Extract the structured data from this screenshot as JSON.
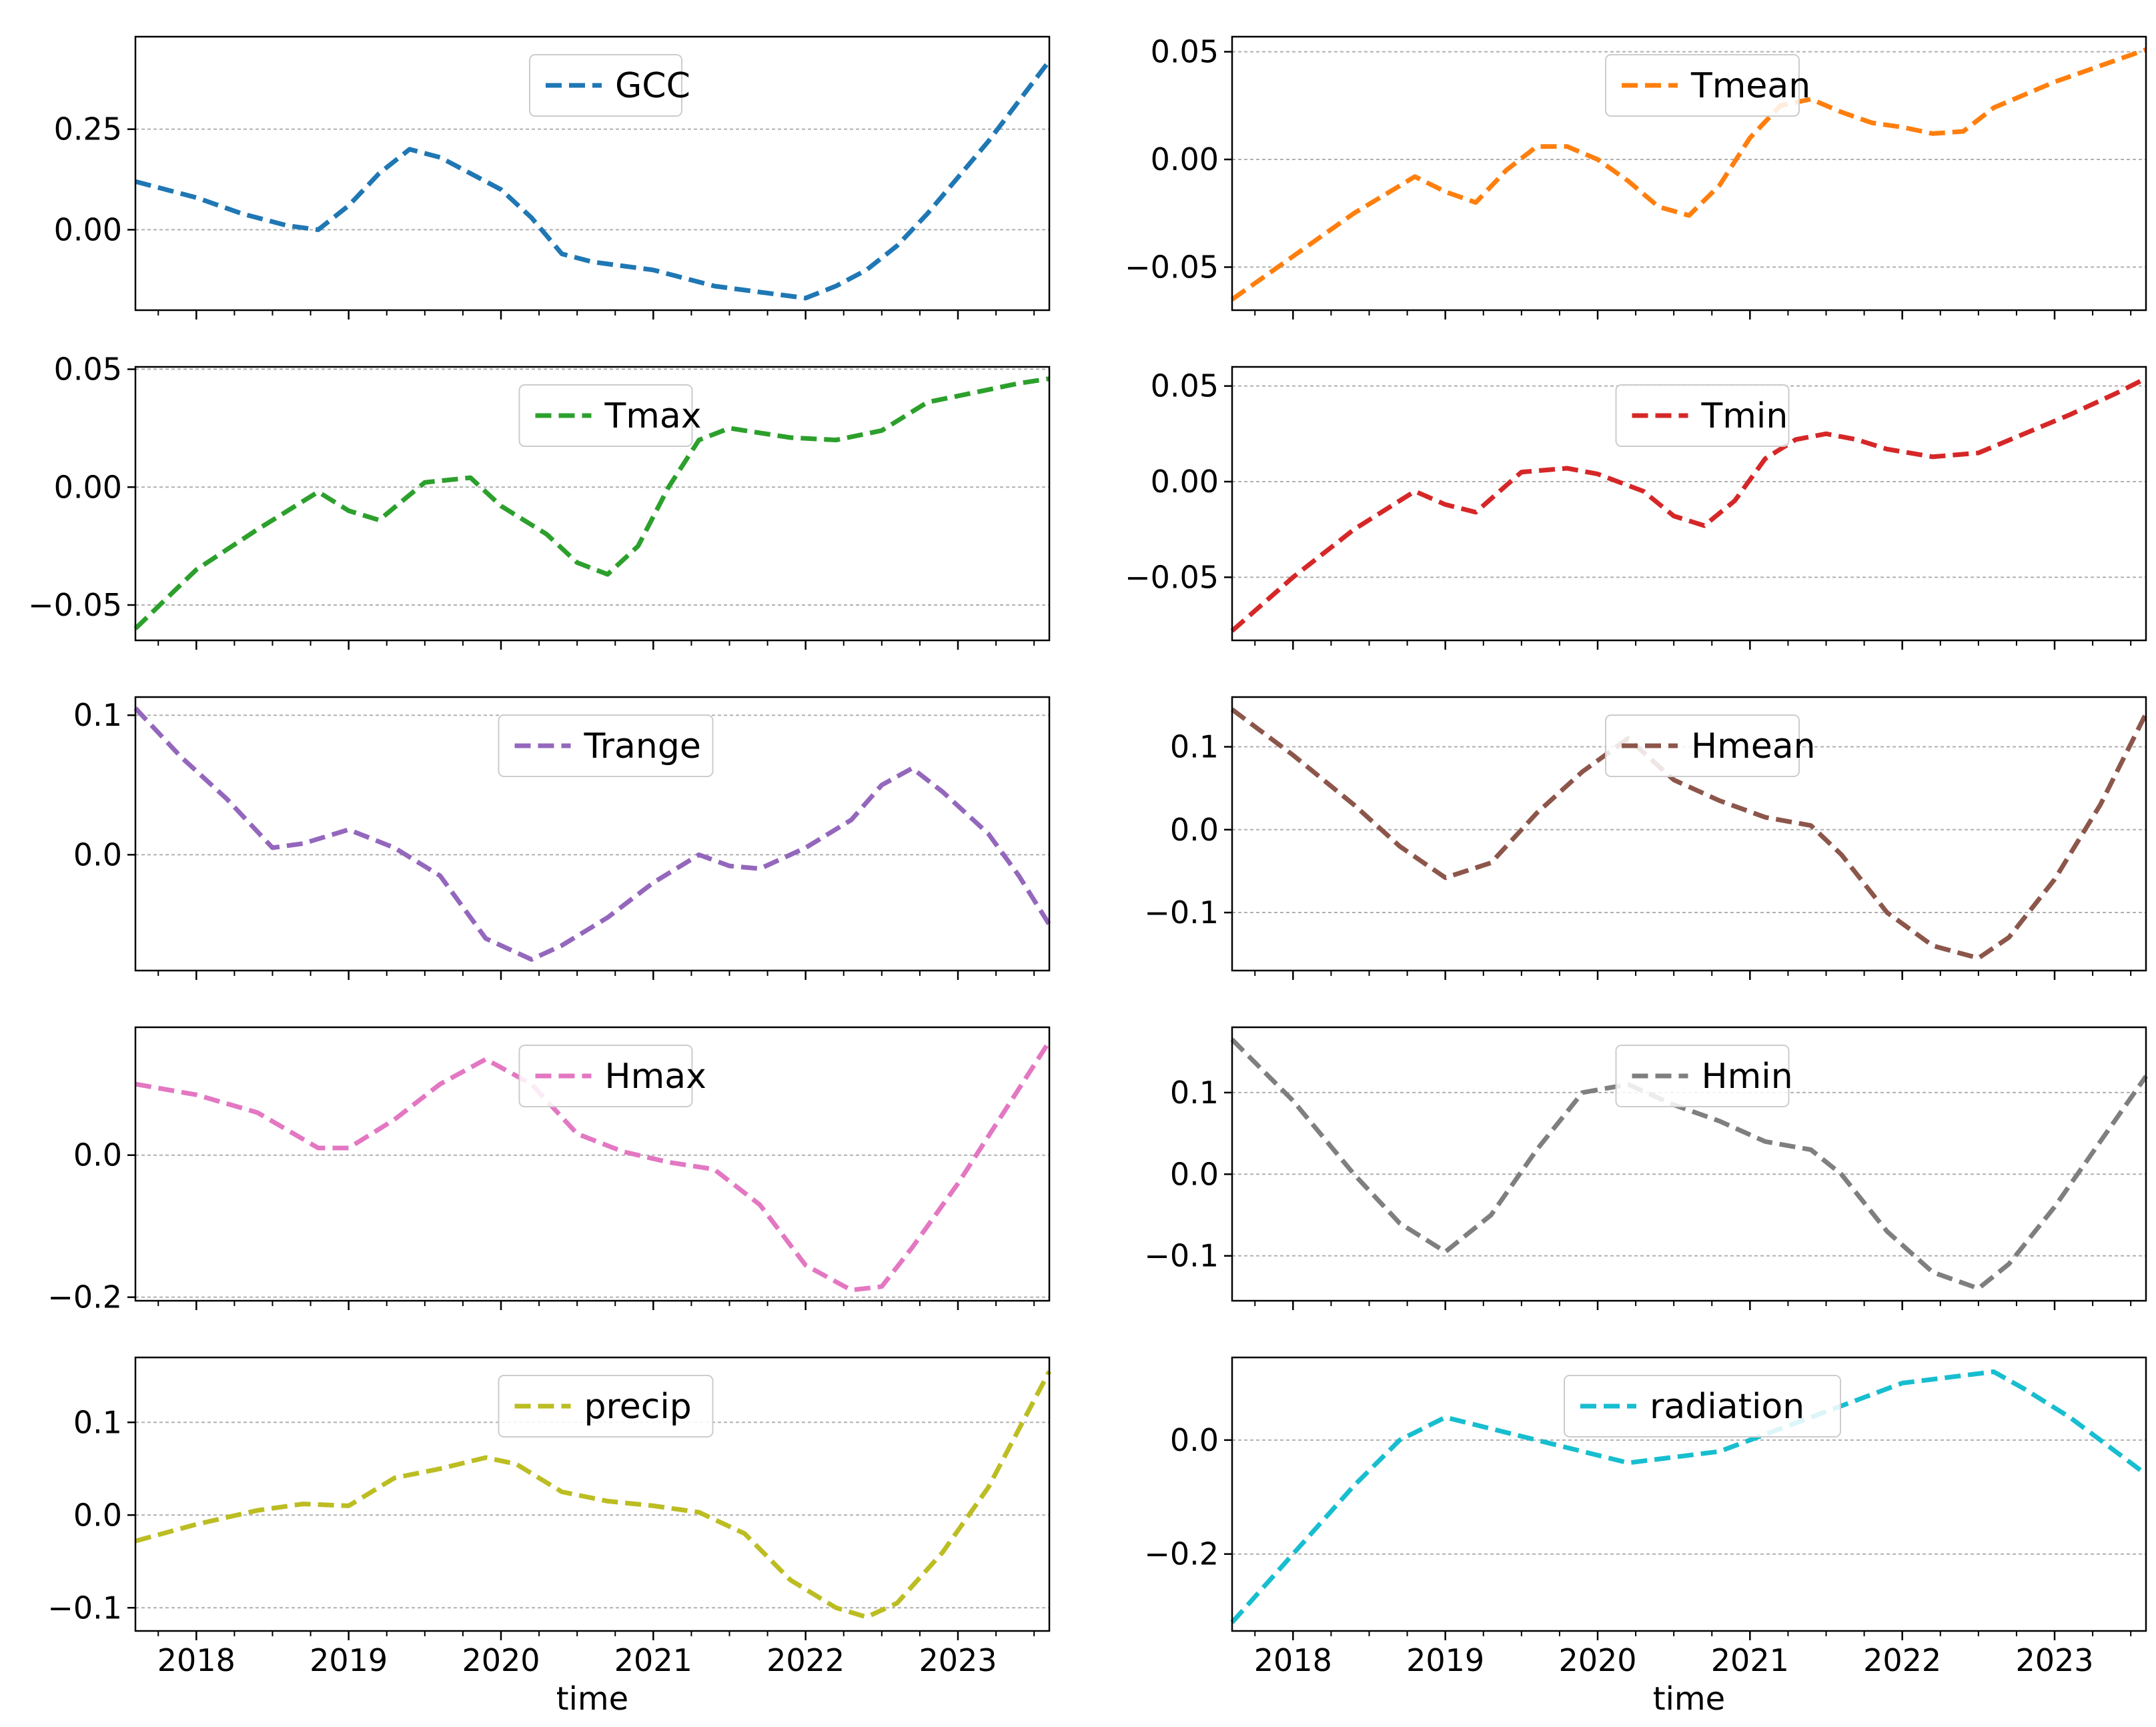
{
  "chart_data": [
    {
      "type": "line",
      "series": [
        {
          "name": "GCC",
          "color": "#1f77b4",
          "x": [
            2017.6,
            2018.0,
            2018.3,
            2018.6,
            2018.8,
            2019.0,
            2019.2,
            2019.4,
            2019.6,
            2019.8,
            2020.0,
            2020.2,
            2020.4,
            2020.6,
            2020.8,
            2021.0,
            2021.2,
            2021.4,
            2021.6,
            2021.8,
            2022.0,
            2022.2,
            2022.4,
            2022.6,
            2022.8,
            2023.0,
            2023.2,
            2023.4,
            2023.6
          ],
          "y": [
            0.12,
            0.08,
            0.04,
            0.01,
            0.0,
            0.06,
            0.14,
            0.2,
            0.18,
            0.14,
            0.1,
            0.03,
            -0.06,
            -0.08,
            -0.09,
            -0.1,
            -0.12,
            -0.14,
            -0.15,
            -0.16,
            -0.17,
            -0.14,
            -0.1,
            -0.04,
            0.04,
            0.13,
            0.22,
            0.32,
            0.42
          ]
        }
      ],
      "yticks": [
        0.0,
        0.25
      ],
      "ytick_labels": [
        "0.00",
        "0.25"
      ],
      "ylim": [
        -0.2,
        0.48
      ],
      "xlim": [
        2017.6,
        2023.6
      ],
      "xticks": [
        2018,
        2019,
        2020,
        2021,
        2022,
        2023
      ],
      "xtick_labels": [],
      "xlabel": "",
      "grid": true,
      "legend": "upper-center"
    },
    {
      "type": "line",
      "series": [
        {
          "name": "Tmean",
          "color": "#ff7f0e",
          "x": [
            2017.6,
            2018.0,
            2018.4,
            2018.8,
            2019.0,
            2019.2,
            2019.4,
            2019.6,
            2019.8,
            2020.0,
            2020.2,
            2020.4,
            2020.6,
            2020.8,
            2021.0,
            2021.2,
            2021.4,
            2021.6,
            2021.8,
            2022.0,
            2022.2,
            2022.4,
            2022.6,
            2022.8,
            2023.0,
            2023.2,
            2023.4,
            2023.6
          ],
          "y": [
            -0.065,
            -0.045,
            -0.025,
            -0.008,
            -0.015,
            -0.02,
            -0.005,
            0.006,
            0.006,
            0.0,
            -0.01,
            -0.022,
            -0.026,
            -0.012,
            0.01,
            0.025,
            0.028,
            0.022,
            0.017,
            0.015,
            0.012,
            0.013,
            0.024,
            0.03,
            0.036,
            0.041,
            0.046,
            0.051
          ]
        }
      ],
      "yticks": [
        -0.05,
        0.0,
        0.05
      ],
      "ytick_labels": [
        "−0.05",
        "0.00",
        "0.05"
      ],
      "ylim": [
        -0.07,
        0.057
      ],
      "xlim": [
        2017.6,
        2023.6
      ],
      "xticks": [
        2018,
        2019,
        2020,
        2021,
        2022,
        2023
      ],
      "xtick_labels": [],
      "xlabel": "",
      "grid": true,
      "legend": "upper-center"
    },
    {
      "type": "line",
      "series": [
        {
          "name": "Tmax",
          "color": "#2ca02c",
          "x": [
            2017.6,
            2018.0,
            2018.4,
            2018.8,
            2019.0,
            2019.2,
            2019.5,
            2019.8,
            2020.0,
            2020.3,
            2020.5,
            2020.7,
            2020.9,
            2021.1,
            2021.3,
            2021.5,
            2021.7,
            2021.9,
            2022.2,
            2022.5,
            2022.8,
            2023.1,
            2023.4,
            2023.6
          ],
          "y": [
            -0.06,
            -0.035,
            -0.018,
            -0.002,
            -0.01,
            -0.014,
            0.002,
            0.004,
            -0.008,
            -0.02,
            -0.032,
            -0.037,
            -0.025,
            0.0,
            0.02,
            0.025,
            0.023,
            0.021,
            0.02,
            0.024,
            0.036,
            0.04,
            0.044,
            0.046
          ]
        }
      ],
      "yticks": [
        -0.05,
        0.0,
        0.05
      ],
      "ytick_labels": [
        "−0.05",
        "0.00",
        "0.05"
      ],
      "ylim": [
        -0.065,
        0.051
      ],
      "xlim": [
        2017.6,
        2023.6
      ],
      "xticks": [
        2018,
        2019,
        2020,
        2021,
        2022,
        2023
      ],
      "xtick_labels": [],
      "xlabel": "",
      "grid": true,
      "legend": "upper-center"
    },
    {
      "type": "line",
      "series": [
        {
          "name": "Tmin",
          "color": "#d62728",
          "x": [
            2017.6,
            2018.0,
            2018.4,
            2018.8,
            2019.0,
            2019.2,
            2019.5,
            2019.8,
            2020.0,
            2020.3,
            2020.5,
            2020.7,
            2020.9,
            2021.1,
            2021.3,
            2021.5,
            2021.7,
            2021.9,
            2022.2,
            2022.5,
            2022.8,
            2023.1,
            2023.4,
            2023.6
          ],
          "y": [
            -0.078,
            -0.05,
            -0.025,
            -0.005,
            -0.012,
            -0.016,
            0.005,
            0.007,
            0.004,
            -0.005,
            -0.018,
            -0.023,
            -0.01,
            0.012,
            0.022,
            0.025,
            0.022,
            0.017,
            0.013,
            0.015,
            0.025,
            0.035,
            0.046,
            0.054
          ]
        }
      ],
      "yticks": [
        -0.05,
        0.0,
        0.05
      ],
      "ytick_labels": [
        "−0.05",
        "0.00",
        "0.05"
      ],
      "ylim": [
        -0.083,
        0.06
      ],
      "xlim": [
        2017.6,
        2023.6
      ],
      "xticks": [
        2018,
        2019,
        2020,
        2021,
        2022,
        2023
      ],
      "xtick_labels": [],
      "xlabel": "",
      "grid": true,
      "legend": "upper-center"
    },
    {
      "type": "line",
      "series": [
        {
          "name": "Trange",
          "color": "#9467bd",
          "x": [
            2017.6,
            2017.9,
            2018.2,
            2018.5,
            2018.7,
            2019.0,
            2019.3,
            2019.6,
            2019.9,
            2020.2,
            2020.4,
            2020.7,
            2021.0,
            2021.3,
            2021.5,
            2021.7,
            2022.0,
            2022.3,
            2022.5,
            2022.7,
            2022.9,
            2023.2,
            2023.4,
            2023.6
          ],
          "y": [
            0.105,
            0.07,
            0.04,
            0.005,
            0.008,
            0.018,
            0.005,
            -0.015,
            -0.06,
            -0.075,
            -0.065,
            -0.045,
            -0.02,
            0.0,
            -0.008,
            -0.01,
            0.005,
            0.025,
            0.05,
            0.062,
            0.045,
            0.015,
            -0.015,
            -0.05
          ]
        }
      ],
      "yticks": [
        0.0,
        0.1
      ],
      "ytick_labels": [
        "0.0",
        "0.1"
      ],
      "ylim": [
        -0.083,
        0.113
      ],
      "xlim": [
        2017.6,
        2023.6
      ],
      "xticks": [
        2018,
        2019,
        2020,
        2021,
        2022,
        2023
      ],
      "xtick_labels": [],
      "xlabel": "",
      "grid": true,
      "legend": "upper-center"
    },
    {
      "type": "line",
      "series": [
        {
          "name": "Hmean",
          "color": "#8c564b",
          "x": [
            2017.6,
            2018.0,
            2018.4,
            2018.7,
            2019.0,
            2019.3,
            2019.6,
            2019.9,
            2020.2,
            2020.5,
            2020.8,
            2021.1,
            2021.4,
            2021.6,
            2021.9,
            2022.2,
            2022.5,
            2022.7,
            2023.0,
            2023.3,
            2023.6
          ],
          "y": [
            0.145,
            0.09,
            0.03,
            -0.02,
            -0.058,
            -0.04,
            0.02,
            0.07,
            0.11,
            0.06,
            0.035,
            0.015,
            0.005,
            -0.03,
            -0.1,
            -0.14,
            -0.155,
            -0.13,
            -0.06,
            0.03,
            0.14
          ]
        }
      ],
      "yticks": [
        -0.1,
        0.0,
        0.1
      ],
      "ytick_labels": [
        "−0.1",
        "0.0",
        "0.1"
      ],
      "ylim": [
        -0.17,
        0.16
      ],
      "xlim": [
        2017.6,
        2023.6
      ],
      "xticks": [
        2018,
        2019,
        2020,
        2021,
        2022,
        2023
      ],
      "xtick_labels": [],
      "xlabel": "",
      "grid": true,
      "legend": "upper-center"
    },
    {
      "type": "line",
      "series": [
        {
          "name": "Hmax",
          "color": "#e377c2",
          "x": [
            2017.6,
            2018.0,
            2018.4,
            2018.8,
            2019.0,
            2019.3,
            2019.6,
            2019.9,
            2020.2,
            2020.5,
            2020.8,
            2021.1,
            2021.4,
            2021.7,
            2022.0,
            2022.3,
            2022.5,
            2022.7,
            2023.0,
            2023.3,
            2023.6
          ],
          "y": [
            0.1,
            0.085,
            0.06,
            0.01,
            0.01,
            0.05,
            0.1,
            0.135,
            0.1,
            0.03,
            0.005,
            -0.01,
            -0.02,
            -0.07,
            -0.155,
            -0.19,
            -0.185,
            -0.13,
            -0.04,
            0.06,
            0.16
          ]
        }
      ],
      "yticks": [
        -0.2,
        0.0
      ],
      "ytick_labels": [
        "−0.2",
        "0.0"
      ],
      "ylim": [
        -0.205,
        0.18
      ],
      "xlim": [
        2017.6,
        2023.6
      ],
      "xticks": [
        2018,
        2019,
        2020,
        2021,
        2022,
        2023
      ],
      "xtick_labels": [],
      "xlabel": "",
      "grid": true,
      "legend": "upper-center"
    },
    {
      "type": "line",
      "series": [
        {
          "name": "Hmin",
          "color": "#7f7f7f",
          "x": [
            2017.6,
            2018.0,
            2018.4,
            2018.7,
            2019.0,
            2019.3,
            2019.6,
            2019.9,
            2020.2,
            2020.5,
            2020.8,
            2021.1,
            2021.4,
            2021.6,
            2021.9,
            2022.2,
            2022.5,
            2022.7,
            2023.0,
            2023.3,
            2023.6
          ],
          "y": [
            0.165,
            0.09,
            0.0,
            -0.06,
            -0.095,
            -0.05,
            0.03,
            0.1,
            0.11,
            0.085,
            0.065,
            0.04,
            0.03,
            0.0,
            -0.07,
            -0.12,
            -0.14,
            -0.11,
            -0.04,
            0.04,
            0.12
          ]
        }
      ],
      "yticks": [
        -0.1,
        0.0,
        0.1
      ],
      "ytick_labels": [
        "−0.1",
        "0.0",
        "0.1"
      ],
      "ylim": [
        -0.155,
        0.18
      ],
      "xlim": [
        2017.6,
        2023.6
      ],
      "xticks": [
        2018,
        2019,
        2020,
        2021,
        2022,
        2023
      ],
      "xtick_labels": [],
      "xlabel": "",
      "grid": true,
      "legend": "upper-center"
    },
    {
      "type": "line",
      "series": [
        {
          "name": "precip",
          "color": "#bcbd22",
          "x": [
            2017.6,
            2018.0,
            2018.4,
            2018.7,
            2019.0,
            2019.3,
            2019.6,
            2019.9,
            2020.1,
            2020.4,
            2020.7,
            2021.0,
            2021.3,
            2021.6,
            2021.9,
            2022.2,
            2022.4,
            2022.6,
            2022.9,
            2023.2,
            2023.6
          ],
          "y": [
            -0.028,
            -0.01,
            0.005,
            0.012,
            0.01,
            0.04,
            0.05,
            0.062,
            0.055,
            0.025,
            0.015,
            0.01,
            0.003,
            -0.02,
            -0.07,
            -0.1,
            -0.11,
            -0.095,
            -0.04,
            0.03,
            0.155
          ]
        }
      ],
      "yticks": [
        -0.1,
        0.0,
        0.1
      ],
      "ytick_labels": [
        "−0.1",
        "0.0",
        "0.1"
      ],
      "ylim": [
        -0.125,
        0.17
      ],
      "xlim": [
        2017.6,
        2023.6
      ],
      "xticks": [
        2018,
        2019,
        2020,
        2021,
        2022,
        2023
      ],
      "xtick_labels": [
        "2018",
        "2019",
        "2020",
        "2021",
        "2022",
        "2023"
      ],
      "xlabel": "time",
      "grid": true,
      "legend": "upper-center"
    },
    {
      "type": "line",
      "series": [
        {
          "name": "radiation",
          "color": "#17becf",
          "x": [
            2017.6,
            2018.0,
            2018.4,
            2018.7,
            2019.0,
            2019.3,
            2019.6,
            2019.9,
            2020.2,
            2020.5,
            2020.8,
            2021.1,
            2021.4,
            2021.7,
            2022.0,
            2022.3,
            2022.6,
            2022.8,
            2023.1,
            2023.4,
            2023.6
          ],
          "y": [
            -0.32,
            -0.2,
            -0.08,
            0.0,
            0.04,
            0.02,
            0.0,
            -0.02,
            -0.04,
            -0.03,
            -0.02,
            0.01,
            0.04,
            0.07,
            0.1,
            0.11,
            0.12,
            0.09,
            0.04,
            -0.02,
            -0.06
          ]
        }
      ],
      "yticks": [
        -0.2,
        0.0
      ],
      "ytick_labels": [
        "−0.2",
        "0.0"
      ],
      "ylim": [
        -0.335,
        0.145
      ],
      "xlim": [
        2017.6,
        2023.6
      ],
      "xticks": [
        2018,
        2019,
        2020,
        2021,
        2022,
        2023
      ],
      "xtick_labels": [
        "2018",
        "2019",
        "2020",
        "2021",
        "2022",
        "2023"
      ],
      "xlabel": "time",
      "grid": true,
      "legend": "upper-center"
    }
  ]
}
